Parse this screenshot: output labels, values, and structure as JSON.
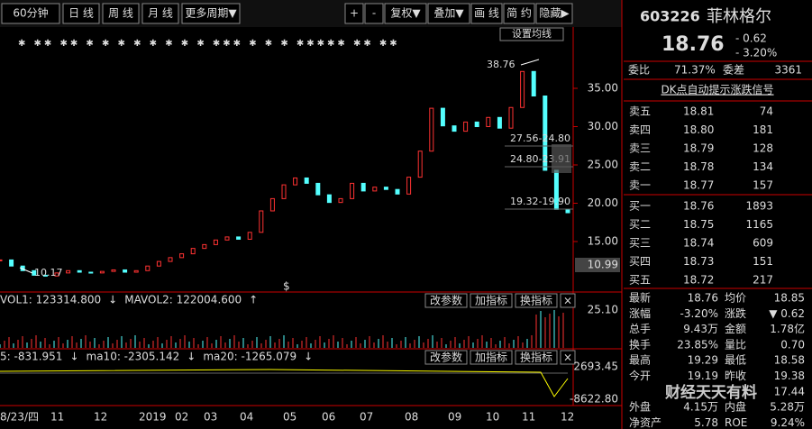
{
  "toolbar": {
    "left": [
      "60分钟",
      "日 线",
      "周 线",
      "月 线",
      "更多周期▼"
    ],
    "right": [
      "+",
      "-",
      "复权▼",
      "叠加▼",
      "画 线",
      "简 约",
      "隐藏▶"
    ]
  },
  "chart": {
    "button": "设置均线",
    "yaxis": [
      {
        "value": 35,
        "label": "35.00"
      },
      {
        "value": 30,
        "label": "30.00"
      },
      {
        "value": 25,
        "label": "25.00"
      },
      {
        "value": 20,
        "label": "20.00"
      },
      {
        "value": 15,
        "label": "15.00"
      }
    ],
    "last_box": "10.99",
    "high_label": "38.76",
    "low_label": "10.17",
    "ranges": [
      "27.56-24.80",
      "24.80-23.91",
      "19.32-19.90"
    ],
    "signal": "$",
    "closes": [
      12.6,
      11.8,
      11.2,
      10.6,
      10.5,
      10.9,
      11.2,
      11.0,
      10.9,
      11.1,
      11.3,
      11.0,
      11.2,
      11.8,
      12.4,
      12.9,
      13.4,
      14.1,
      14.6,
      15.2,
      15.6,
      15.3,
      16.2,
      19.0,
      20.6,
      22.4,
      23.3,
      22.6,
      21.1,
      20.1,
      20.6,
      22.6,
      21.6,
      22.1,
      21.8,
      21.2,
      23.4,
      26.8,
      32.4,
      30.1,
      29.4,
      30.6,
      30.0,
      31.2,
      29.8,
      32.5,
      37.2,
      34.0,
      24.3,
      19.2,
      18.76
    ],
    "x_labels": [
      "8/23/四",
      "11",
      "12",
      "2019",
      "02",
      "03",
      "04",
      "05",
      "06",
      "07",
      "08",
      "09",
      "10",
      "11",
      "12"
    ]
  },
  "volume": {
    "vol1": "VOL1: 123314.800",
    "arrow1": "↓",
    "mavol2": "MAVOL2: 122004.600",
    "arrow2": "↑",
    "axis": "25.10"
  },
  "macd": {
    "ma5": "5: -831.951",
    "arrow1": "↓",
    "ma10": "ma10: -2305.142",
    "arrow2": "↓",
    "ma20": "ma20: -1265.079",
    "arrow3": "↓",
    "axis_top": "2693.45",
    "axis_bottom": "-8622.80"
  },
  "panel_buttons": [
    "改参数",
    "加指标",
    "换指标",
    "×"
  ],
  "quote": {
    "code": "603226",
    "name": "菲林格尔",
    "price": "18.76",
    "change": "- 0.62",
    "pct": "- 3.20%",
    "weibi_label": "委比",
    "weibi": "71.37%",
    "weicha_label": "委差",
    "weicha": "3361",
    "signal_link": "DK点自动提示涨跌信号",
    "sell": [
      [
        "卖五",
        "18.81",
        "74"
      ],
      [
        "卖四",
        "18.80",
        "181"
      ],
      [
        "卖三",
        "18.79",
        "128"
      ],
      [
        "卖二",
        "18.78",
        "134"
      ],
      [
        "卖一",
        "18.77",
        "157"
      ]
    ],
    "buy": [
      [
        "买一",
        "18.76",
        "1893"
      ],
      [
        "买二",
        "18.75",
        "1165"
      ],
      [
        "买三",
        "18.74",
        "609"
      ],
      [
        "买四",
        "18.73",
        "151"
      ],
      [
        "买五",
        "18.72",
        "217"
      ]
    ],
    "stats": [
      [
        "最新",
        "18.76",
        "均价",
        "18.85"
      ],
      [
        "涨幅",
        "-3.20%",
        "涨跌",
        "▼ 0.62"
      ],
      [
        "总手",
        "9.43万",
        "金额",
        "1.78亿"
      ],
      [
        "换手",
        "23.85%",
        "量比",
        "0.70"
      ],
      [
        "最高",
        "19.29",
        "最低",
        "18.58"
      ],
      [
        "今开",
        "19.19",
        "昨收",
        "19.38"
      ],
      [
        "",
        "",
        "",
        "17.44"
      ],
      [
        "外盘",
        "4.15万",
        "内盘",
        "5.28万"
      ],
      [
        "净资产",
        "5.78",
        "ROE",
        "9.24%"
      ]
    ]
  },
  "watermark": "财经天天有料"
}
